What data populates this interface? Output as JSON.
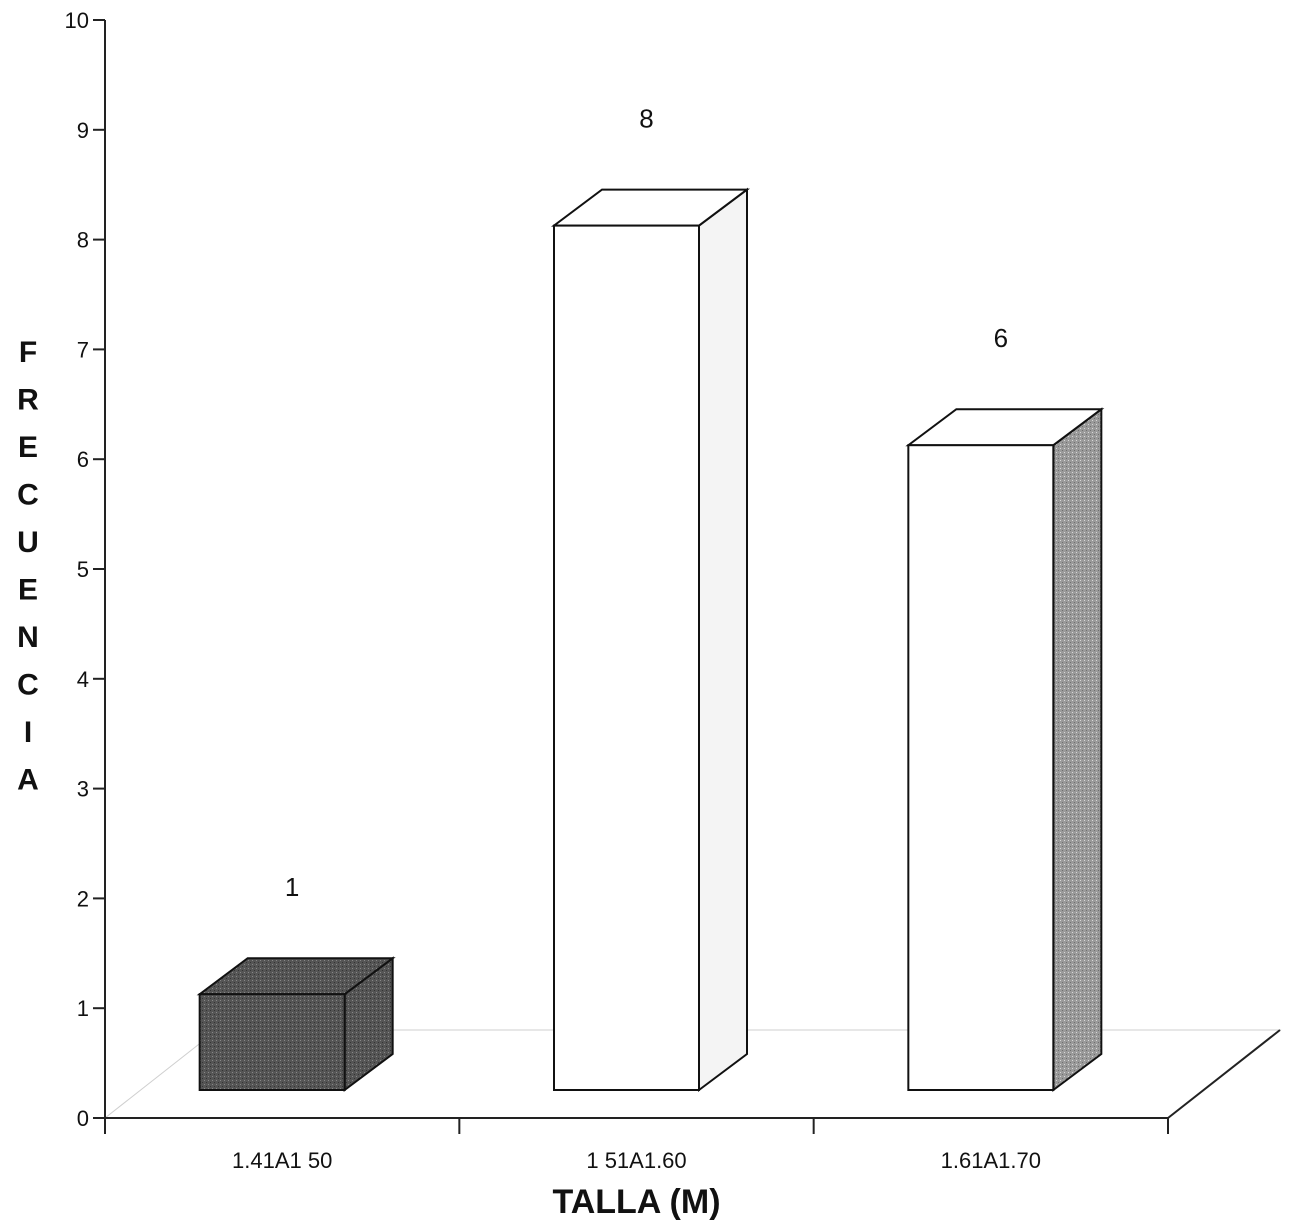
{
  "chart_data": {
    "type": "bar",
    "style": "3d",
    "categories": [
      "1.41A1 50",
      "1 51A1.60",
      "1.61A1.70"
    ],
    "values": [
      1,
      8,
      6
    ],
    "data_labels": [
      "1",
      "8",
      "6"
    ],
    "title": "",
    "xlabel": "TALLA (M)",
    "ylabel": "FRECUENCIA",
    "ylim": [
      0,
      10
    ],
    "yticks": [
      "0",
      "1",
      "2",
      "3",
      "4",
      "5",
      "6",
      "7",
      "8",
      "9",
      "10"
    ],
    "grid": false,
    "legend": "none",
    "bar_colors": [
      "#4a4a4a",
      "#ffffff",
      "#ffffff"
    ],
    "side_colors": [
      "#5c5c5c",
      "#f4f4f4",
      "#8a8a8a"
    ],
    "top_colors": [
      "#6a6a6a",
      "#ffffff",
      "#ffffff"
    ]
  }
}
